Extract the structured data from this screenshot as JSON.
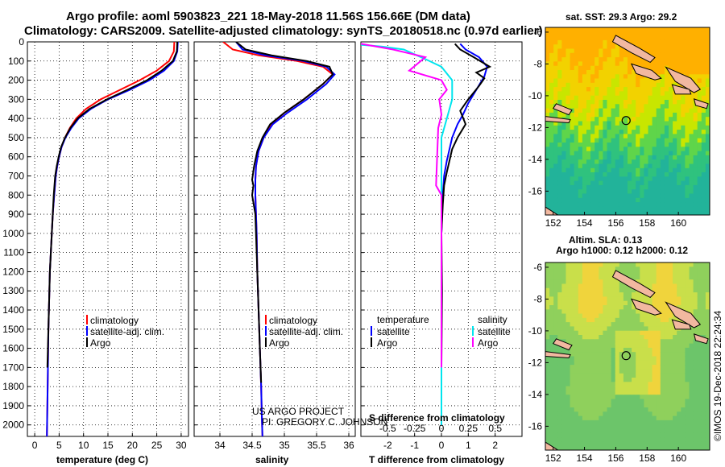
{
  "title_line1": "Argo profile: aoml 5903823_221 18-May-2018 11.56S 156.66E (DM data)",
  "title_line2": "Climatology: CARS2009. Satellite-adjusted climatology: synTS_20180518.nc (0.97d earlier)",
  "credit_line1": "US ARGO PROJECT",
  "credit_line2": "PI: GREGORY C. JOHNSON",
  "imos_stamp": "©IMOS 19-Dec-2018 22:24:34",
  "colors": {
    "climatology": "#ff0000",
    "satellite": "#0000ff",
    "argo": "#000000",
    "sal_satellite": "#00e5ee",
    "sal_argo": "#ff00ff"
  },
  "chart_data": [
    {
      "id": "temperature",
      "type": "line",
      "xlabel": "temperature (deg C)",
      "xlim": [
        -1.5,
        31.5
      ],
      "ylim": [
        2060,
        0
      ],
      "xticks": [
        0,
        5,
        10,
        15,
        20,
        25,
        30
      ],
      "yticks": [
        0,
        100,
        200,
        300,
        400,
        500,
        600,
        700,
        800,
        900,
        1000,
        1100,
        1200,
        1300,
        1400,
        1500,
        1600,
        1700,
        1800,
        1900,
        2000
      ],
      "legend": [
        "climatology",
        "satellite-adj. clim.",
        "Argo"
      ],
      "series": [
        {
          "name": "climatology",
          "color": "#ff0000",
          "x": [
            28.6,
            28.5,
            27.5,
            25.0,
            21.5,
            17.5,
            13.5,
            10.5,
            8.5,
            7.2,
            6.2,
            5.5,
            5.0,
            4.6,
            4.3,
            4.0,
            3.7,
            3.5,
            3.3,
            3.1,
            3.0,
            2.9,
            2.8,
            2.7,
            2.6,
            2.5
          ],
          "y": [
            0,
            50,
            100,
            150,
            200,
            250,
            300,
            350,
            400,
            450,
            500,
            550,
            600,
            650,
            700,
            800,
            900,
            1000,
            1100,
            1200,
            1300,
            1400,
            1500,
            1700,
            1900,
            2060
          ]
        },
        {
          "name": "satellite-adj. clim.",
          "color": "#0000ff",
          "x": [
            29.3,
            29.2,
            28.5,
            26.5,
            23.5,
            19.5,
            15.0,
            11.5,
            9.0,
            7.5,
            6.3,
            5.5,
            5.0,
            4.6,
            4.3,
            4.0,
            3.7,
            3.5,
            3.3,
            3.1,
            3.0,
            2.9,
            2.8,
            2.7,
            2.6,
            2.5
          ],
          "y": [
            0,
            50,
            100,
            150,
            200,
            250,
            300,
            350,
            400,
            450,
            500,
            550,
            600,
            650,
            700,
            800,
            900,
            1000,
            1100,
            1200,
            1300,
            1400,
            1500,
            1700,
            1900,
            2060
          ]
        },
        {
          "name": "Argo",
          "color": "#000000",
          "x": [
            29.2,
            29.1,
            28.3,
            26.0,
            23.0,
            19.0,
            14.8,
            11.2,
            8.8,
            7.3,
            6.2,
            5.4,
            4.9,
            4.5,
            4.2,
            3.9,
            3.7,
            3.5,
            3.3,
            3.1,
            3.0,
            2.9,
            2.8,
            2.6
          ],
          "y": [
            0,
            50,
            100,
            150,
            200,
            250,
            300,
            350,
            400,
            450,
            500,
            550,
            600,
            650,
            700,
            800,
            900,
            1000,
            1100,
            1200,
            1300,
            1400,
            1500,
            1700
          ]
        }
      ]
    },
    {
      "id": "salinity",
      "type": "line",
      "xlabel": "salinity",
      "xlim": [
        33.6,
        36.1
      ],
      "ylim": [
        2060,
        0
      ],
      "xticks": [
        34,
        34.5,
        35,
        35.5,
        36
      ],
      "legend": [
        "climatology",
        "satellite-adj. clim.",
        "Argo"
      ],
      "series": [
        {
          "name": "climatology",
          "color": "#ff0000",
          "x": [
            34.05,
            34.2,
            34.6,
            35.2,
            35.6,
            35.75,
            35.6,
            35.3,
            35.0,
            34.8,
            34.68,
            34.6,
            34.56,
            34.55,
            34.55,
            34.56,
            34.57,
            34.58,
            34.6,
            34.62,
            34.64,
            34.65,
            34.66
          ],
          "y": [
            0,
            40,
            70,
            100,
            130,
            170,
            220,
            300,
            370,
            430,
            500,
            570,
            650,
            720,
            800,
            900,
            1000,
            1200,
            1400,
            1600,
            1800,
            1950,
            2060
          ]
        },
        {
          "name": "satellite-adj. clim.",
          "color": "#0000ff",
          "x": [
            34.25,
            34.35,
            34.7,
            35.3,
            35.65,
            35.78,
            35.65,
            35.35,
            35.05,
            34.82,
            34.68,
            34.6,
            34.56,
            34.55,
            34.55,
            34.56,
            34.57,
            34.58,
            34.6,
            34.62,
            34.64,
            34.65,
            34.66
          ],
          "y": [
            0,
            40,
            70,
            100,
            130,
            170,
            220,
            300,
            370,
            430,
            500,
            570,
            650,
            720,
            800,
            900,
            1000,
            1200,
            1400,
            1600,
            1800,
            1950,
            2060
          ]
        },
        {
          "name": "Argo",
          "color": "#000000",
          "x": [
            34.25,
            34.4,
            34.8,
            35.35,
            35.7,
            35.75,
            35.6,
            35.3,
            35.0,
            34.78,
            34.66,
            34.58,
            34.53,
            34.5,
            34.52,
            34.5,
            34.55,
            34.56,
            34.58,
            34.6,
            34.62,
            34.64
          ],
          "y": [
            0,
            40,
            70,
            100,
            130,
            170,
            220,
            300,
            370,
            430,
            500,
            570,
            650,
            720,
            750,
            800,
            900,
            1000,
            1200,
            1400,
            1600,
            1780
          ]
        }
      ]
    },
    {
      "id": "differences",
      "type": "line",
      "xlabel": "T difference from climatology",
      "xlabel_top": "S difference from climatology",
      "xlim": [
        -3,
        3
      ],
      "ylim": [
        2060,
        0
      ],
      "xticks": [
        -2,
        -1,
        0,
        1,
        2
      ],
      "xticks_top": [
        -0.5,
        -0.25,
        0,
        0.25,
        0.5
      ],
      "legend_temperature_title": "temperature",
      "legend_salinity_title": "salinity",
      "legend_labels": [
        "satellite",
        "Argo"
      ],
      "series": [
        {
          "name": "temperature satellite",
          "color": "#0000ff",
          "x": [
            0.7,
            0.9,
            1.4,
            1.7,
            1.6,
            1.3,
            1.0,
            0.8,
            0.6,
            0.4,
            0.3,
            0.2,
            0.1,
            0.05,
            0,
            0,
            0,
            0
          ],
          "y": [
            10,
            40,
            80,
            130,
            180,
            250,
            320,
            380,
            430,
            500,
            560,
            620,
            700,
            800,
            1000,
            1300,
            1700,
            2000
          ]
        },
        {
          "name": "temperature Argo",
          "color": "#000000",
          "x": [
            0.5,
            0.7,
            1.2,
            1.8,
            1.3,
            1.6,
            1.4,
            1.0,
            0.7,
            0.9,
            0.6,
            0.4,
            0.3,
            0.2,
            0.1,
            0.05,
            0,
            0.02,
            0
          ],
          "y": [
            10,
            40,
            80,
            130,
            160,
            190,
            230,
            300,
            360,
            430,
            500,
            560,
            620,
            680,
            750,
            850,
            1000,
            1300,
            1700
          ]
        },
        {
          "name": "salinity satellite",
          "color": "#00e5ee",
          "x": [
            -0.75,
            -0.55,
            -0.35,
            -0.15,
            0,
            0.1,
            0.1,
            0.05,
            0,
            0,
            0,
            0,
            0,
            0,
            0,
            0
          ],
          "y": [
            15,
            25,
            40,
            90,
            130,
            200,
            300,
            400,
            500,
            600,
            700,
            800,
            1000,
            1300,
            1700,
            2000
          ]
        },
        {
          "name": "salinity Argo",
          "color": "#ff00ff",
          "x": [
            -0.8,
            -0.45,
            -0.15,
            -0.3,
            0,
            0.05,
            -0.02,
            0,
            -0.03,
            -0.05,
            0,
            0,
            0,
            0
          ],
          "y": [
            5,
            40,
            80,
            150,
            200,
            250,
            300,
            380,
            450,
            750,
            800,
            1000,
            1300,
            1700
          ]
        }
      ]
    },
    {
      "id": "sst_map",
      "type": "heatmap",
      "title": "sat. SST: 29.3 Argo: 29.2",
      "xticks": [
        152,
        154,
        156,
        158,
        160
      ],
      "yticks": [
        -6,
        -8,
        -10,
        -12,
        -14,
        -16
      ],
      "xlim": [
        151.5,
        162.0
      ],
      "ylim": [
        -17.5,
        -5.7
      ],
      "argo_position": {
        "lon": 156.66,
        "lat": -11.56
      }
    },
    {
      "id": "sla_map",
      "type": "heatmap",
      "title_line1": "Altim. SLA: 0.13",
      "title_line2": "Argo h1000: 0.12 h2000: 0.12",
      "xticks": [
        152,
        154,
        156,
        158,
        160
      ],
      "yticks": [
        -6,
        -8,
        -10,
        -12,
        -14,
        -16
      ],
      "xlim": [
        151.5,
        162.0
      ],
      "ylim": [
        -17.5,
        -5.7
      ],
      "argo_position": {
        "lon": 156.66,
        "lat": -11.56
      }
    }
  ]
}
